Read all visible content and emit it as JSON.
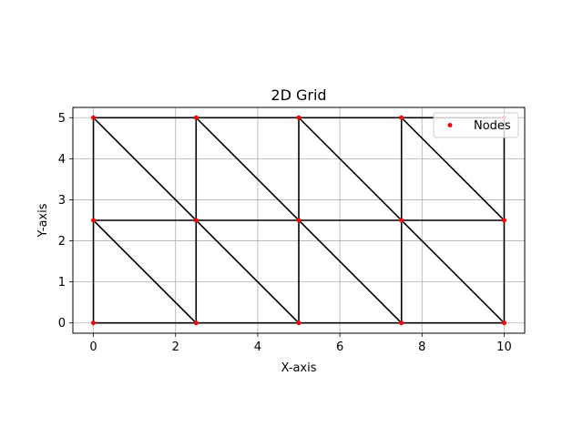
{
  "chart_data": {
    "type": "scatter",
    "title": "2D Grid",
    "xlabel": "X-axis",
    "ylabel": "Y-axis",
    "xlim": [
      -0.5,
      10.5
    ],
    "ylim": [
      -0.25,
      5.25
    ],
    "xticks": [
      0,
      2,
      4,
      6,
      8,
      10
    ],
    "yticks": [
      0,
      1,
      2,
      3,
      4,
      5
    ],
    "grid": true,
    "legend_position": "top-right",
    "series": [
      {
        "name": "Nodes",
        "color": "#ff0000",
        "points": [
          [
            0,
            0
          ],
          [
            2.5,
            0
          ],
          [
            5,
            0
          ],
          [
            7.5,
            0
          ],
          [
            10,
            0
          ],
          [
            0,
            2.5
          ],
          [
            2.5,
            2.5
          ],
          [
            5,
            2.5
          ],
          [
            7.5,
            2.5
          ],
          [
            10,
            2.5
          ],
          [
            0,
            5
          ],
          [
            2.5,
            5
          ],
          [
            5,
            5
          ],
          [
            7.5,
            5
          ],
          [
            10,
            5
          ]
        ]
      }
    ],
    "edges": [
      [
        [
          0,
          0
        ],
        [
          10,
          0
        ]
      ],
      [
        [
          0,
          2.5
        ],
        [
          10,
          2.5
        ]
      ],
      [
        [
          0,
          5
        ],
        [
          10,
          5
        ]
      ],
      [
        [
          0,
          0
        ],
        [
          0,
          5
        ]
      ],
      [
        [
          2.5,
          0
        ],
        [
          2.5,
          5
        ]
      ],
      [
        [
          5,
          0
        ],
        [
          5,
          5
        ]
      ],
      [
        [
          7.5,
          0
        ],
        [
          7.5,
          5
        ]
      ],
      [
        [
          10,
          0
        ],
        [
          10,
          5
        ]
      ],
      [
        [
          0,
          2.5
        ],
        [
          2.5,
          0
        ]
      ],
      [
        [
          2.5,
          2.5
        ],
        [
          5,
          0
        ]
      ],
      [
        [
          5,
          2.5
        ],
        [
          7.5,
          0
        ]
      ],
      [
        [
          7.5,
          2.5
        ],
        [
          10,
          0
        ]
      ],
      [
        [
          0,
          5
        ],
        [
          2.5,
          2.5
        ]
      ],
      [
        [
          2.5,
          5
        ],
        [
          5,
          2.5
        ]
      ],
      [
        [
          5,
          5
        ],
        [
          7.5,
          2.5
        ]
      ],
      [
        [
          7.5,
          5
        ],
        [
          10,
          2.5
        ]
      ]
    ],
    "edge_color": "#000000"
  }
}
